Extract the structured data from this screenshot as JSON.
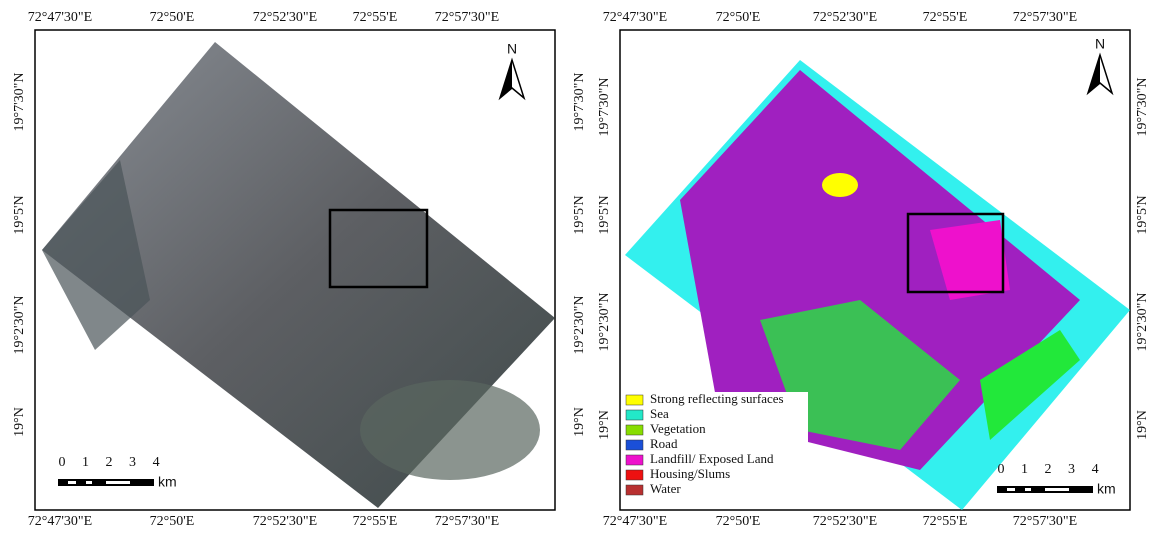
{
  "panels": [
    {
      "lon_labels": [
        "72°47'30\"E",
        "72°50'E",
        "72°52'30\"E",
        "72°55'E",
        "72°57'30\"E"
      ],
      "lat_labels": [
        "19°7'30\"N",
        "19°5'N",
        "19°2'30\"N",
        "19°N"
      ],
      "north": "N",
      "scale": {
        "ticks": [
          "0",
          "1",
          "2",
          "3",
          "4"
        ],
        "unit": "km"
      }
    },
    {
      "lon_labels": [
        "72°47'30\"E",
        "72°50'E",
        "72°52'30\"E",
        "72°55'E",
        "72°57'30\"E"
      ],
      "lat_labels": [
        "19°7'30\"N",
        "19°5'N",
        "19°2'30\"N",
        "19°N"
      ],
      "north": "N",
      "scale": {
        "ticks": [
          "0",
          "1",
          "2",
          "3",
          "4"
        ],
        "unit": "km"
      },
      "legend": [
        {
          "label": "Strong reflecting surfaces",
          "color": "#ffff00"
        },
        {
          "label": "Sea",
          "color": "#22e8c8"
        },
        {
          "label": "Vegetation",
          "color": "#88dd00"
        },
        {
          "label": "Road",
          "color": "#1a4fd8"
        },
        {
          "label": "Landfill/ Exposed Land",
          "color": "#ee11cc"
        },
        {
          "label": "Housing/Slums",
          "color": "#ee1111"
        },
        {
          "label": "Water",
          "color": "#b83030"
        }
      ]
    }
  ]
}
